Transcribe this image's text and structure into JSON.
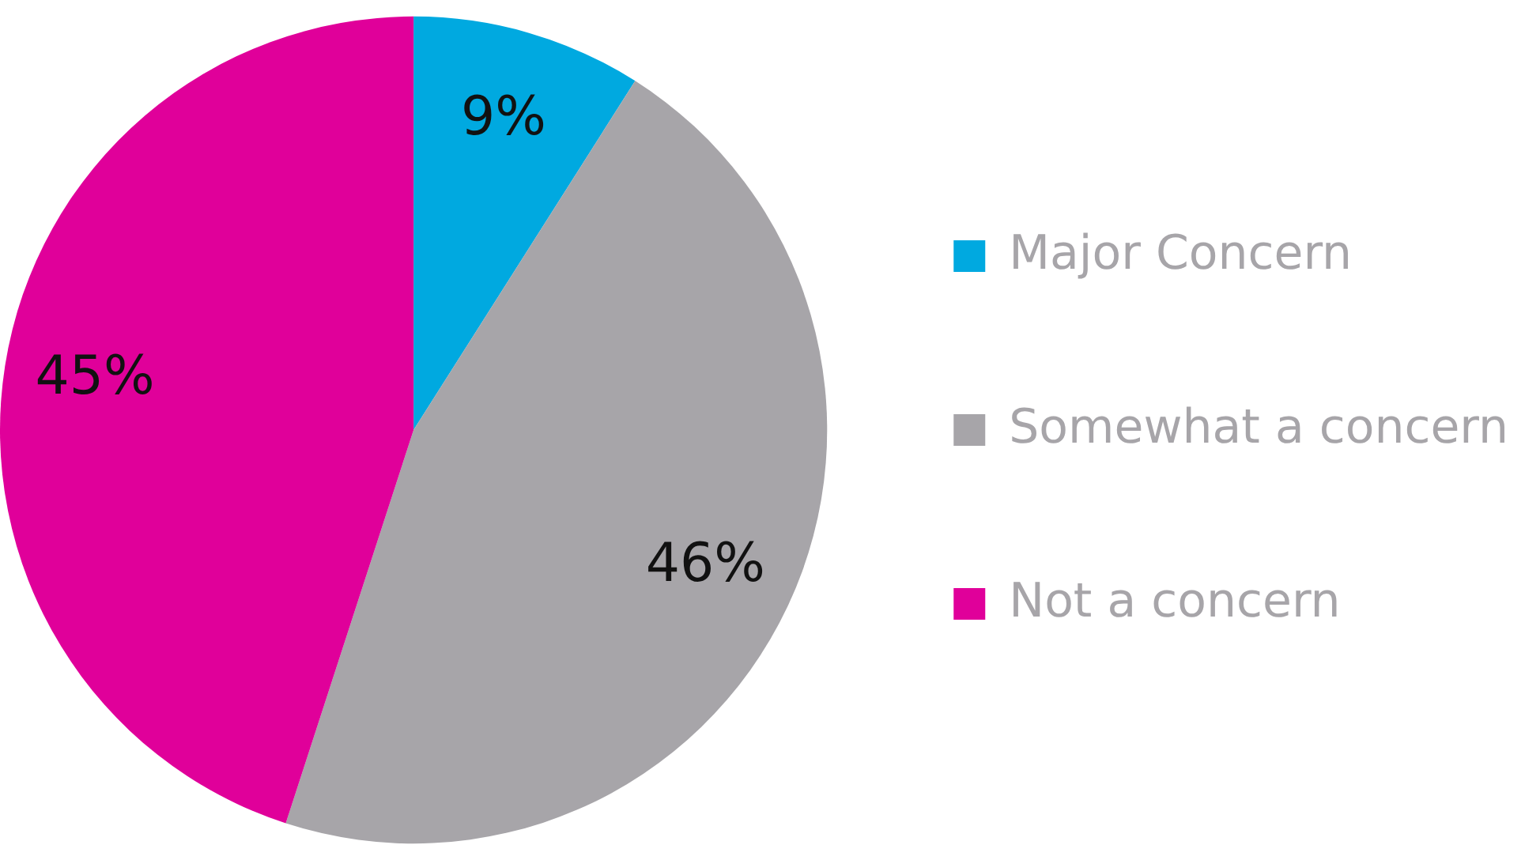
{
  "chart_data": {
    "type": "pie",
    "categories": [
      "Major Concern",
      "Somewhat a concern",
      "Not a concern"
    ],
    "values": [
      9,
      46,
      45
    ],
    "value_labels": [
      "9%",
      "46%",
      "45%"
    ],
    "colors": [
      "#00a9e0",
      "#a7a5a9",
      "#e0009a"
    ],
    "legend": "right"
  }
}
